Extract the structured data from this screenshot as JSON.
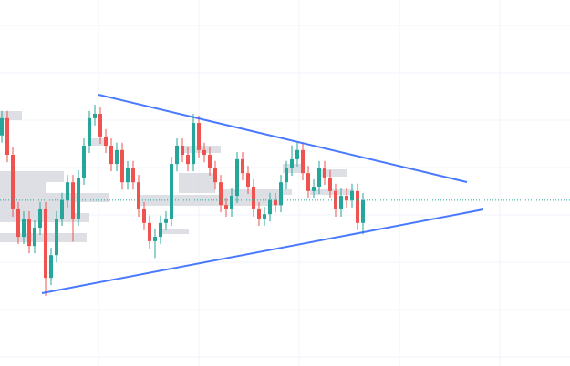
{
  "chart_data": {
    "type": "candlestick",
    "ylim": [
      0,
      100
    ],
    "up_color": "#26a69a",
    "down_color": "#ef5350",
    "open": [
      63.0,
      67.7,
      57.7,
      42.8,
      35.3,
      40.3,
      32.8,
      37.8,
      42.8,
      24.1,
      30.3,
      40.3,
      45.3,
      50.2,
      40.3,
      51.5,
      60.2,
      67.7,
      68.9,
      62.7,
      60.2,
      55.2,
      59.0,
      50.2,
      54.0,
      50.2,
      42.8,
      39.1,
      34.1,
      35.3,
      39.1,
      40.3,
      55.2,
      60.2,
      57.7,
      55.2,
      66.4,
      59.0,
      57.7,
      54.0,
      50.2,
      44.0,
      42.8,
      46.5,
      56.5,
      52.7,
      49.0,
      42.8,
      40.3,
      41.5,
      45.3,
      44.0,
      50.2,
      54.0,
      56.5,
      59.0,
      52.7,
      47.8,
      49.0,
      54.0,
      51.5,
      47.8,
      42.8,
      46.5,
      45.3,
      47.8,
      39.1
    ],
    "high": [
      69.7,
      69.7,
      59.7,
      44.8,
      42.3,
      42.3,
      39.8,
      44.8,
      44.8,
      32.3,
      42.3,
      47.3,
      52.2,
      52.2,
      53.5,
      62.2,
      69.7,
      71.4,
      70.9,
      64.7,
      62.2,
      61.0,
      61.0,
      56.0,
      56.0,
      52.2,
      44.8,
      41.1,
      37.3,
      41.1,
      42.3,
      57.2,
      62.2,
      62.2,
      59.7,
      68.9,
      68.4,
      61.0,
      59.7,
      56.0,
      52.2,
      46.0,
      48.5,
      58.5,
      58.5,
      54.7,
      51.0,
      44.8,
      43.5,
      47.3,
      47.3,
      52.2,
      56.0,
      60.3,
      61.0,
      61.0,
      54.7,
      51.0,
      56.0,
      56.0,
      53.5,
      49.8,
      48.5,
      48.5,
      49.8,
      49.8,
      47.3
    ],
    "low": [
      61.0,
      55.7,
      40.8,
      33.3,
      33.3,
      30.8,
      30.8,
      35.8,
      19.2,
      22.1,
      28.3,
      38.3,
      43.3,
      34.0,
      38.3,
      49.5,
      58.2,
      65.7,
      60.7,
      58.2,
      53.2,
      53.2,
      48.2,
      48.2,
      48.2,
      40.8,
      37.1,
      32.1,
      29.5,
      33.3,
      37.1,
      38.3,
      53.2,
      55.7,
      53.2,
      53.2,
      57.0,
      55.7,
      52.0,
      48.2,
      42.0,
      40.8,
      40.8,
      44.5,
      50.7,
      47.0,
      40.8,
      38.3,
      38.3,
      39.5,
      42.0,
      42.0,
      48.2,
      52.0,
      54.5,
      50.7,
      45.8,
      45.8,
      47.0,
      49.5,
      45.8,
      40.8,
      40.8,
      43.3,
      43.3,
      37.1,
      36.0
    ],
    "close": [
      67.7,
      57.7,
      42.8,
      35.3,
      40.3,
      32.8,
      37.8,
      42.8,
      24.1,
      30.3,
      40.3,
      45.3,
      50.2,
      40.3,
      51.5,
      60.2,
      67.7,
      68.9,
      62.7,
      60.2,
      55.2,
      59.0,
      50.2,
      54.0,
      50.2,
      42.8,
      39.1,
      34.1,
      35.3,
      39.1,
      40.3,
      55.2,
      60.2,
      57.7,
      55.2,
      66.4,
      59.0,
      57.7,
      54.0,
      50.2,
      44.0,
      42.8,
      46.5,
      56.5,
      52.7,
      49.0,
      42.8,
      40.3,
      41.5,
      45.3,
      44.0,
      50.2,
      54.0,
      56.5,
      59.0,
      52.7,
      47.8,
      49.0,
      54.0,
      51.5,
      47.8,
      42.8,
      46.5,
      45.3,
      47.8,
      39.1,
      45.3
    ]
  }
}
